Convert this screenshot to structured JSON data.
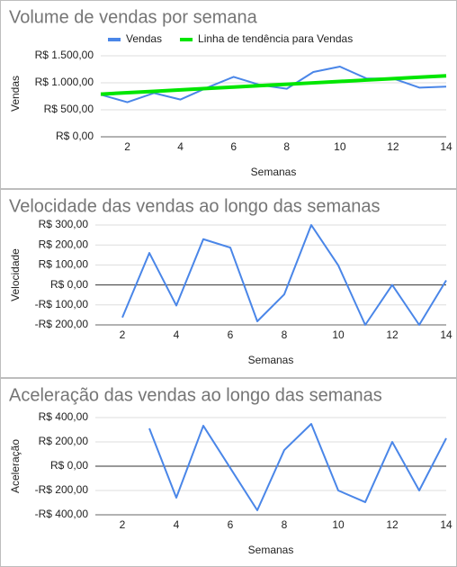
{
  "chart_data": [
    {
      "type": "line",
      "title": "Volume de vendas por semana",
      "x_label": "Semanas",
      "y_label": "Vendas",
      "legend": "top",
      "grid": true,
      "x": [
        1,
        2,
        3,
        4,
        5,
        6,
        7,
        8,
        9,
        10,
        11,
        12,
        13,
        14
      ],
      "series": [
        {
          "name": "Vendas",
          "color": "#4a86e8",
          "values": [
            780,
            640,
            810,
            690,
            910,
            1110,
            960,
            890,
            1200,
            1300,
            1080,
            1080,
            910,
            930
          ]
        },
        {
          "name": "Linha de tendência para Vendas",
          "color": "#00e600",
          "values": [
            790,
            816,
            842,
            868,
            895,
            921,
            947,
            973,
            999,
            1025,
            1051,
            1078,
            1104,
            1130
          ]
        }
      ],
      "xlim": [
        1,
        14
      ],
      "xticks": [
        2,
        4,
        6,
        8,
        10,
        12,
        14
      ],
      "ylim": [
        0,
        1600
      ],
      "yticks": [
        {
          "value": 0,
          "label": "R$ 0,00"
        },
        {
          "value": 500,
          "label": "R$ 500,00"
        },
        {
          "value": 1000,
          "label": "R$ 1.000,00"
        },
        {
          "value": 1500,
          "label": "R$ 1.500,00"
        }
      ]
    },
    {
      "type": "line",
      "title": "Velocidade das vendas ao longo das semanas",
      "x_label": "Semanas",
      "y_label": "Velocidade",
      "grid": true,
      "color": "#4a86e8",
      "x": [
        2,
        3,
        4,
        5,
        6,
        7,
        8,
        9,
        10,
        11,
        12,
        13,
        14
      ],
      "values": [
        -163,
        160,
        -103,
        229,
        187,
        -182,
        -47,
        300,
        98,
        -200,
        0,
        -200,
        23
      ],
      "xlim": [
        1,
        14
      ],
      "xticks": [
        2,
        4,
        6,
        8,
        10,
        12,
        14
      ],
      "ylim": [
        -200,
        300
      ],
      "yticks": [
        {
          "value": -200,
          "label": "-R$ 200,00"
        },
        {
          "value": -100,
          "label": "-R$ 100,00"
        },
        {
          "value": 0,
          "label": "R$ 0,00"
        },
        {
          "value": 100,
          "label": "R$ 100,00"
        },
        {
          "value": 200,
          "label": "R$ 200,00"
        },
        {
          "value": 300,
          "label": "R$ 300,00"
        }
      ]
    },
    {
      "type": "line",
      "title": "Aceleração das vendas ao longo das semanas",
      "x_label": "Semanas",
      "y_label": "Aceleração",
      "grid": true,
      "color": "#4a86e8",
      "x": [
        2,
        3,
        4,
        5,
        6,
        7,
        8,
        9,
        10,
        11,
        12,
        13,
        14
      ],
      "values": [
        null,
        311,
        -259,
        333,
        -15,
        -363,
        133,
        348,
        -200,
        -296,
        200,
        -200,
        230
      ],
      "xlim": [
        1,
        14
      ],
      "xticks": [
        2,
        4,
        6,
        8,
        10,
        12,
        14
      ],
      "ylim": [
        -400,
        400
      ],
      "yticks": [
        {
          "value": -400,
          "label": "-R$ 400,00"
        },
        {
          "value": -200,
          "label": "-R$ 200,00"
        },
        {
          "value": 0,
          "label": "R$ 0,00"
        },
        {
          "value": 200,
          "label": "R$ 200,00"
        },
        {
          "value": 400,
          "label": "R$ 400,00"
        }
      ]
    }
  ]
}
